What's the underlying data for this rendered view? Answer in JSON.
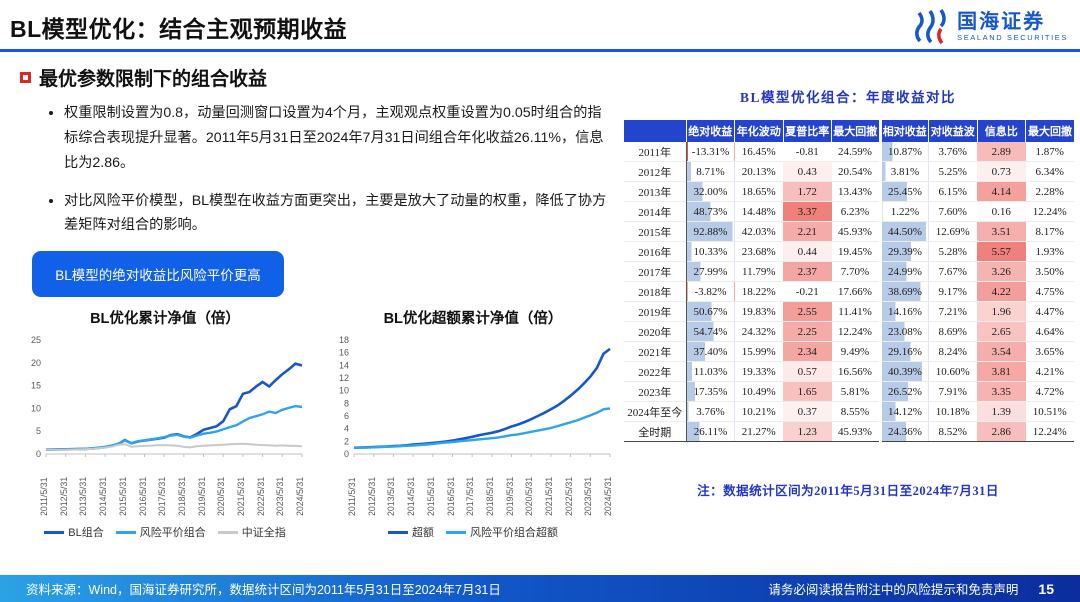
{
  "header": {
    "title": "BL模型优化：结合主观预期收益",
    "logo_cn": "国海证券",
    "logo_en": "SEALAND SECURITIES"
  },
  "content": {
    "section_title": "最优参数限制下的组合收益",
    "bullets": [
      "权重限制设置为0.8，动量回测窗口设置为4个月，主观观点权重设置为0.05时组合的指标综合表现提升显著。2011年5月31日至2024年7月31日间组合年化收益26.11%，信息比为2.86。",
      "对比风险平价模型，BL模型在收益方面更突出，主要是放大了动量的权重，降低了协方差矩阵对组合的影响。"
    ],
    "callout": "BL模型的绝对收益比风险平价更高"
  },
  "chart_data": [
    {
      "type": "line",
      "title": "BL优化累计净值（倍）",
      "ylim": [
        0,
        25
      ],
      "yticks": [
        0,
        5,
        10,
        15,
        20,
        25
      ],
      "xticklabels": [
        "2011/5/31",
        "2012/5/31",
        "2013/5/31",
        "2014/5/31",
        "2015/5/31",
        "2016/5/31",
        "2017/5/31",
        "2018/5/31",
        "2019/5/31",
        "2020/5/31",
        "2021/5/31",
        "2022/5/31",
        "2023/5/31",
        "2024/5/31"
      ],
      "series": [
        {
          "name": "BL组合",
          "color": "#1658c8",
          "width": 2.6,
          "values": [
            1.0,
            0.96,
            1.0,
            1.02,
            1.05,
            1.08,
            1.12,
            1.18,
            1.32,
            1.5,
            1.75,
            2.2,
            3.05,
            2.35,
            2.75,
            2.95,
            3.15,
            3.35,
            3.6,
            4.15,
            4.35,
            3.85,
            3.65,
            4.4,
            5.3,
            5.7,
            6.1,
            7.2,
            9.8,
            10.5,
            13.2,
            13.6,
            14.8,
            15.8,
            14.8,
            16.2,
            17.5,
            18.6,
            19.8,
            19.4
          ]
        },
        {
          "name": "风险平价组合",
          "color": "#2fa3ee",
          "width": 2.4,
          "values": [
            1.0,
            0.98,
            1.01,
            1.03,
            1.06,
            1.1,
            1.16,
            1.24,
            1.4,
            1.58,
            1.85,
            2.25,
            2.95,
            2.4,
            2.8,
            3.0,
            3.2,
            3.45,
            3.7,
            4.05,
            4.2,
            3.8,
            3.6,
            4.05,
            4.45,
            4.65,
            4.95,
            5.4,
            5.9,
            6.3,
            7.1,
            7.9,
            8.3,
            8.7,
            9.3,
            9.0,
            9.7,
            10.1,
            10.5,
            10.3
          ]
        },
        {
          "name": "中证全指",
          "color": "#c9c9c9",
          "width": 2,
          "values": [
            1.0,
            0.95,
            0.9,
            0.93,
            0.96,
            1.0,
            1.05,
            1.12,
            1.25,
            1.4,
            1.6,
            2.0,
            2.15,
            1.6,
            1.72,
            1.78,
            1.85,
            1.9,
            1.95,
            1.88,
            1.8,
            1.55,
            1.45,
            1.7,
            1.82,
            1.88,
            1.95,
            2.05,
            2.15,
            2.2,
            2.25,
            2.15,
            2.05,
            1.95,
            1.9,
            1.8,
            1.88,
            1.82,
            1.78,
            1.72
          ]
        }
      ]
    },
    {
      "type": "line",
      "title": "BL优化超额累计净值（倍）",
      "ylim": [
        0,
        18
      ],
      "yticks": [
        0,
        2,
        4,
        6,
        8,
        10,
        12,
        14,
        16,
        18
      ],
      "xticklabels": [
        "2011/5/31",
        "2012/5/31",
        "2013/5/31",
        "2014/5/31",
        "2015/5/31",
        "2016/5/31",
        "2017/5/31",
        "2018/5/31",
        "2019/5/31",
        "2020/5/31",
        "2021/5/31",
        "2022/5/31",
        "2023/5/31",
        "2024/5/31"
      ],
      "series": [
        {
          "name": "超额",
          "color": "#1658c8",
          "width": 2.6,
          "values": [
            1.0,
            1.02,
            1.05,
            1.1,
            1.14,
            1.18,
            1.24,
            1.3,
            1.38,
            1.48,
            1.56,
            1.65,
            1.75,
            1.85,
            1.98,
            2.12,
            2.3,
            2.5,
            2.72,
            2.95,
            3.15,
            3.35,
            3.6,
            3.95,
            4.35,
            4.65,
            5.05,
            5.5,
            6.0,
            6.5,
            7.05,
            7.65,
            8.4,
            9.2,
            10.1,
            11.1,
            12.2,
            13.6,
            15.8,
            16.6
          ]
        },
        {
          "name": "风险平价组合超额",
          "color": "#2fa3ee",
          "width": 2.4,
          "values": [
            1.0,
            1.0,
            1.02,
            1.05,
            1.09,
            1.13,
            1.18,
            1.23,
            1.29,
            1.35,
            1.42,
            1.5,
            1.6,
            1.7,
            1.8,
            1.9,
            2.0,
            2.1,
            2.2,
            2.3,
            2.4,
            2.5,
            2.62,
            2.8,
            2.98,
            3.1,
            3.3,
            3.5,
            3.7,
            3.9,
            4.1,
            4.4,
            4.7,
            5.0,
            5.3,
            5.7,
            6.1,
            6.5,
            7.05,
            7.2
          ]
        }
      ]
    }
  ],
  "table": {
    "title": "BL模型优化组合：年度收益对比",
    "note": "注：数据统计区间为2011年5月31日至2024年7月31日",
    "columns": [
      "",
      "绝对收益",
      "年化波动",
      "夏普比率",
      "最大回撤",
      "相对收益",
      "对收益波",
      "信息比",
      "最大回撤"
    ],
    "bar_cols": {
      "0": 93,
      "4": 45
    },
    "heat_cols": {
      "2": 3.37,
      "6": 5.57
    },
    "rows": [
      {
        "label": "2011年",
        "values": [
          "-13.31%",
          "16.45%",
          "-0.81",
          "24.59%",
          "10.87%",
          "3.76%",
          "2.89",
          "1.87%"
        ]
      },
      {
        "label": "2012年",
        "values": [
          "8.71%",
          "20.13%",
          "0.43",
          "20.54%",
          "3.81%",
          "5.25%",
          "0.73",
          "6.34%"
        ]
      },
      {
        "label": "2013年",
        "values": [
          "32.00%",
          "18.65%",
          "1.72",
          "13.43%",
          "25.45%",
          "6.15%",
          "4.14",
          "2.28%"
        ]
      },
      {
        "label": "2014年",
        "values": [
          "48.73%",
          "14.48%",
          "3.37",
          "6.23%",
          "1.22%",
          "7.60%",
          "0.16",
          "12.24%"
        ]
      },
      {
        "label": "2015年",
        "values": [
          "92.88%",
          "42.03%",
          "2.21",
          "45.93%",
          "44.50%",
          "12.69%",
          "3.51",
          "8.17%"
        ]
      },
      {
        "label": "2016年",
        "values": [
          "10.33%",
          "23.68%",
          "0.44",
          "19.45%",
          "29.39%",
          "5.28%",
          "5.57",
          "1.93%"
        ]
      },
      {
        "label": "2017年",
        "values": [
          "27.99%",
          "11.79%",
          "2.37",
          "7.70%",
          "24.99%",
          "7.67%",
          "3.26",
          "3.50%"
        ]
      },
      {
        "label": "2018年",
        "values": [
          "-3.82%",
          "18.22%",
          "-0.21",
          "17.66%",
          "38.69%",
          "9.17%",
          "4.22",
          "4.75%"
        ]
      },
      {
        "label": "2019年",
        "values": [
          "50.67%",
          "19.83%",
          "2.55",
          "11.41%",
          "14.16%",
          "7.21%",
          "1.96",
          "4.47%"
        ]
      },
      {
        "label": "2020年",
        "values": [
          "54.74%",
          "24.32%",
          "2.25",
          "12.24%",
          "23.08%",
          "8.69%",
          "2.65",
          "4.64%"
        ]
      },
      {
        "label": "2021年",
        "values": [
          "37.40%",
          "15.99%",
          "2.34",
          "9.49%",
          "29.16%",
          "8.24%",
          "3.54",
          "3.65%"
        ]
      },
      {
        "label": "2022年",
        "values": [
          "11.03%",
          "19.33%",
          "0.57",
          "16.56%",
          "40.39%",
          "10.60%",
          "3.81",
          "4.21%"
        ]
      },
      {
        "label": "2023年",
        "values": [
          "17.35%",
          "10.49%",
          "1.65",
          "5.81%",
          "26.52%",
          "7.91%",
          "3.35",
          "4.72%"
        ]
      },
      {
        "label": "2024年至今",
        "values": [
          "3.76%",
          "10.21%",
          "0.37",
          "8.55%",
          "14.12%",
          "10.18%",
          "1.39",
          "10.51%"
        ]
      },
      {
        "label": "全时期",
        "total": true,
        "values": [
          "26.11%",
          "21.27%",
          "1.23",
          "45.93%",
          "24.36%",
          "8.52%",
          "2.86",
          "12.24%"
        ]
      }
    ]
  },
  "footer": {
    "source": "资料来源：Wind，国海证券研究所，数据统计区间为2011年5月31日至2024年7月31日",
    "disclaimer": "请务必阅读报告附注中的风险提示和免责声明",
    "page": "15"
  },
  "colors": {
    "accent_blue": "#1457e8",
    "table_header_blue": "#2444ce",
    "heat_red": "#ec605a",
    "bar_blue": "#608bc9"
  }
}
